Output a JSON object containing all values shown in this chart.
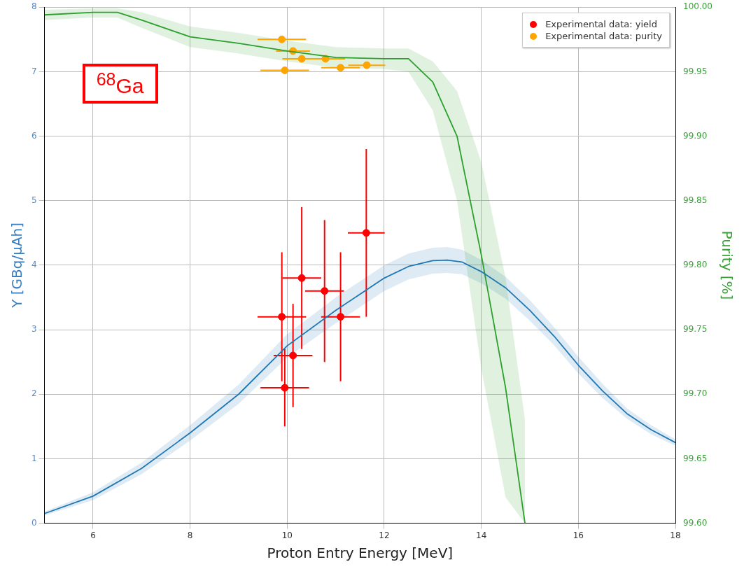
{
  "chart_data": {
    "type": "scatter",
    "xlabel": "Proton Entry Energy [MeV]",
    "ylabel": "Y [GBq/μAh]",
    "y2label": "Purity [%]",
    "annotations": [
      "$^{68}$Ga"
    ],
    "xlim": [
      5,
      18
    ],
    "xticks": [
      6,
      8,
      10,
      12,
      14,
      16,
      18
    ],
    "ylim": [
      0,
      8
    ],
    "yticks": [
      0,
      1,
      2,
      3,
      4,
      5,
      6,
      7,
      8
    ],
    "y2lim": [
      99.6,
      100.0
    ],
    "y2ticks": [
      {
        "value": 99.6,
        "label": "99.60"
      },
      {
        "value": 99.65,
        "label": "99.65"
      },
      {
        "value": 99.7,
        "label": "99.70"
      },
      {
        "value": 99.75,
        "label": "99.75"
      },
      {
        "value": 99.8,
        "label": "99.80"
      },
      {
        "value": 99.85,
        "label": "99.85"
      },
      {
        "value": 99.9,
        "label": "99.90"
      },
      {
        "value": 99.95,
        "label": "99.95"
      },
      {
        "value": 100.0,
        "label": "100.00"
      }
    ],
    "grid": true,
    "legend": "top right",
    "marker": "circle",
    "series": [
      {
        "type": "line",
        "marker": "none",
        "color": "#1f77b4",
        "x": [
          5,
          6,
          7,
          8,
          9,
          10,
          11,
          12,
          12.5,
          13,
          13.3,
          13.6,
          14,
          14.5,
          15,
          15.5,
          16,
          16.5,
          17,
          17.5,
          18
        ],
        "values": [
          0.15,
          0.42,
          0.85,
          1.4,
          2.0,
          2.75,
          3.3,
          3.8,
          3.98,
          4.07,
          4.08,
          4.05,
          3.9,
          3.65,
          3.3,
          2.9,
          2.45,
          2.05,
          1.7,
          1.45,
          1.25
        ],
        "lower": [
          0.12,
          0.36,
          0.76,
          1.28,
          1.85,
          2.57,
          3.1,
          3.6,
          3.78,
          3.87,
          3.88,
          3.86,
          3.72,
          3.48,
          3.14,
          2.76,
          2.32,
          1.94,
          1.62,
          1.38,
          1.2
        ],
        "upper": [
          0.18,
          0.48,
          0.94,
          1.52,
          2.15,
          2.93,
          3.5,
          4.0,
          4.18,
          4.27,
          4.28,
          4.24,
          4.08,
          3.82,
          3.46,
          3.04,
          2.58,
          2.16,
          1.78,
          1.52,
          1.3
        ]
      },
      {
        "type": "line",
        "marker": "none",
        "axis": "y2",
        "color": "#2ca02c",
        "x": [
          5,
          6,
          6.5,
          7,
          8,
          9,
          10,
          11,
          12,
          12.5,
          13,
          13.5,
          14,
          14.5,
          14.9
        ],
        "values": [
          99.994,
          99.996,
          99.996,
          99.99,
          99.977,
          99.972,
          99.966,
          99.961,
          99.96,
          99.96,
          99.942,
          99.9,
          99.808,
          99.705,
          99.6
        ],
        "lower": [
          99.99,
          99.992,
          99.992,
          99.984,
          99.969,
          99.964,
          99.958,
          99.953,
          99.952,
          99.95,
          99.92,
          99.85,
          99.72,
          99.62,
          99.6
        ],
        "upper": [
          99.998,
          99.999,
          99.999,
          99.996,
          99.985,
          99.98,
          99.974,
          99.969,
          99.968,
          99.968,
          99.958,
          99.935,
          99.88,
          99.79,
          99.68
        ]
      },
      {
        "name": "Experimental data: yield",
        "color": "#ff0000",
        "x": [
          9.89,
          10.3,
          10.77,
          11.1,
          11.63,
          10.12,
          9.95
        ],
        "values": [
          3.2,
          3.8,
          3.6,
          3.2,
          4.5,
          2.6,
          2.1
        ],
        "errors": [
          1.0,
          1.1,
          1.1,
          1.0,
          1.3,
          0.8,
          0.6
        ],
        "xerrors": [
          0.5,
          0.4,
          0.4,
          0.4,
          0.38,
          0.4,
          0.5
        ]
      },
      {
        "name": "Experimental data: purity",
        "axis": "y2",
        "color": "#ffa500",
        "x": [
          9.89,
          10.12,
          10.3,
          10.79,
          9.95,
          11.1,
          11.64
        ],
        "values": [
          99.975,
          99.966,
          99.96,
          99.96,
          99.951,
          99.953,
          99.955
        ],
        "xerrors": [
          0.5,
          0.35,
          0.4,
          0.4,
          0.5,
          0.4,
          0.38
        ]
      }
    ]
  }
}
